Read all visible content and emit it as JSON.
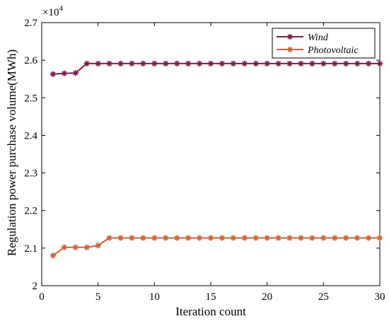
{
  "chart_data": {
    "type": "line",
    "title": "",
    "xlabel": "Iteration count",
    "ylabel": "Regulation power purchase volume(MWh)",
    "y_multiplier_label": "×10",
    "y_multiplier_exponent": "4",
    "xlim": [
      0,
      30
    ],
    "ylim": [
      2.0,
      2.7
    ],
    "xticks": [
      0,
      5,
      10,
      15,
      20,
      25,
      30
    ],
    "yticks": [
      2.0,
      2.1,
      2.2,
      2.3,
      2.4,
      2.5,
      2.6,
      2.7
    ],
    "xtick_labels": [
      "0",
      "5",
      "10",
      "15",
      "20",
      "25",
      "30"
    ],
    "ytick_labels": [
      "2",
      "2.1",
      "2.2",
      "2.3",
      "2.4",
      "2.5",
      "2.6",
      "2.7"
    ],
    "grid": false,
    "legend_position": "top-right",
    "x": [
      1,
      2,
      3,
      4,
      5,
      6,
      7,
      8,
      9,
      10,
      11,
      12,
      13,
      14,
      15,
      16,
      17,
      18,
      19,
      20,
      21,
      22,
      23,
      24,
      25,
      26,
      27,
      28,
      29,
      30
    ],
    "series": [
      {
        "name": "Wind",
        "color": "#7a1f4a",
        "marker": "asterisk",
        "values": [
          2.563,
          2.565,
          2.566,
          2.591,
          2.591,
          2.591,
          2.591,
          2.591,
          2.591,
          2.591,
          2.591,
          2.591,
          2.591,
          2.591,
          2.591,
          2.591,
          2.591,
          2.591,
          2.591,
          2.591,
          2.591,
          2.591,
          2.591,
          2.591,
          2.591,
          2.591,
          2.591,
          2.591,
          2.591,
          2.591
        ]
      },
      {
        "name": "Photovoltaic",
        "color": "#c8643a",
        "marker": "asterisk",
        "values": [
          2.08,
          2.102,
          2.102,
          2.102,
          2.107,
          2.127,
          2.127,
          2.127,
          2.127,
          2.127,
          2.127,
          2.127,
          2.127,
          2.127,
          2.127,
          2.127,
          2.127,
          2.127,
          2.127,
          2.127,
          2.127,
          2.127,
          2.127,
          2.127,
          2.127,
          2.127,
          2.127,
          2.127,
          2.127,
          2.127
        ]
      }
    ]
  }
}
